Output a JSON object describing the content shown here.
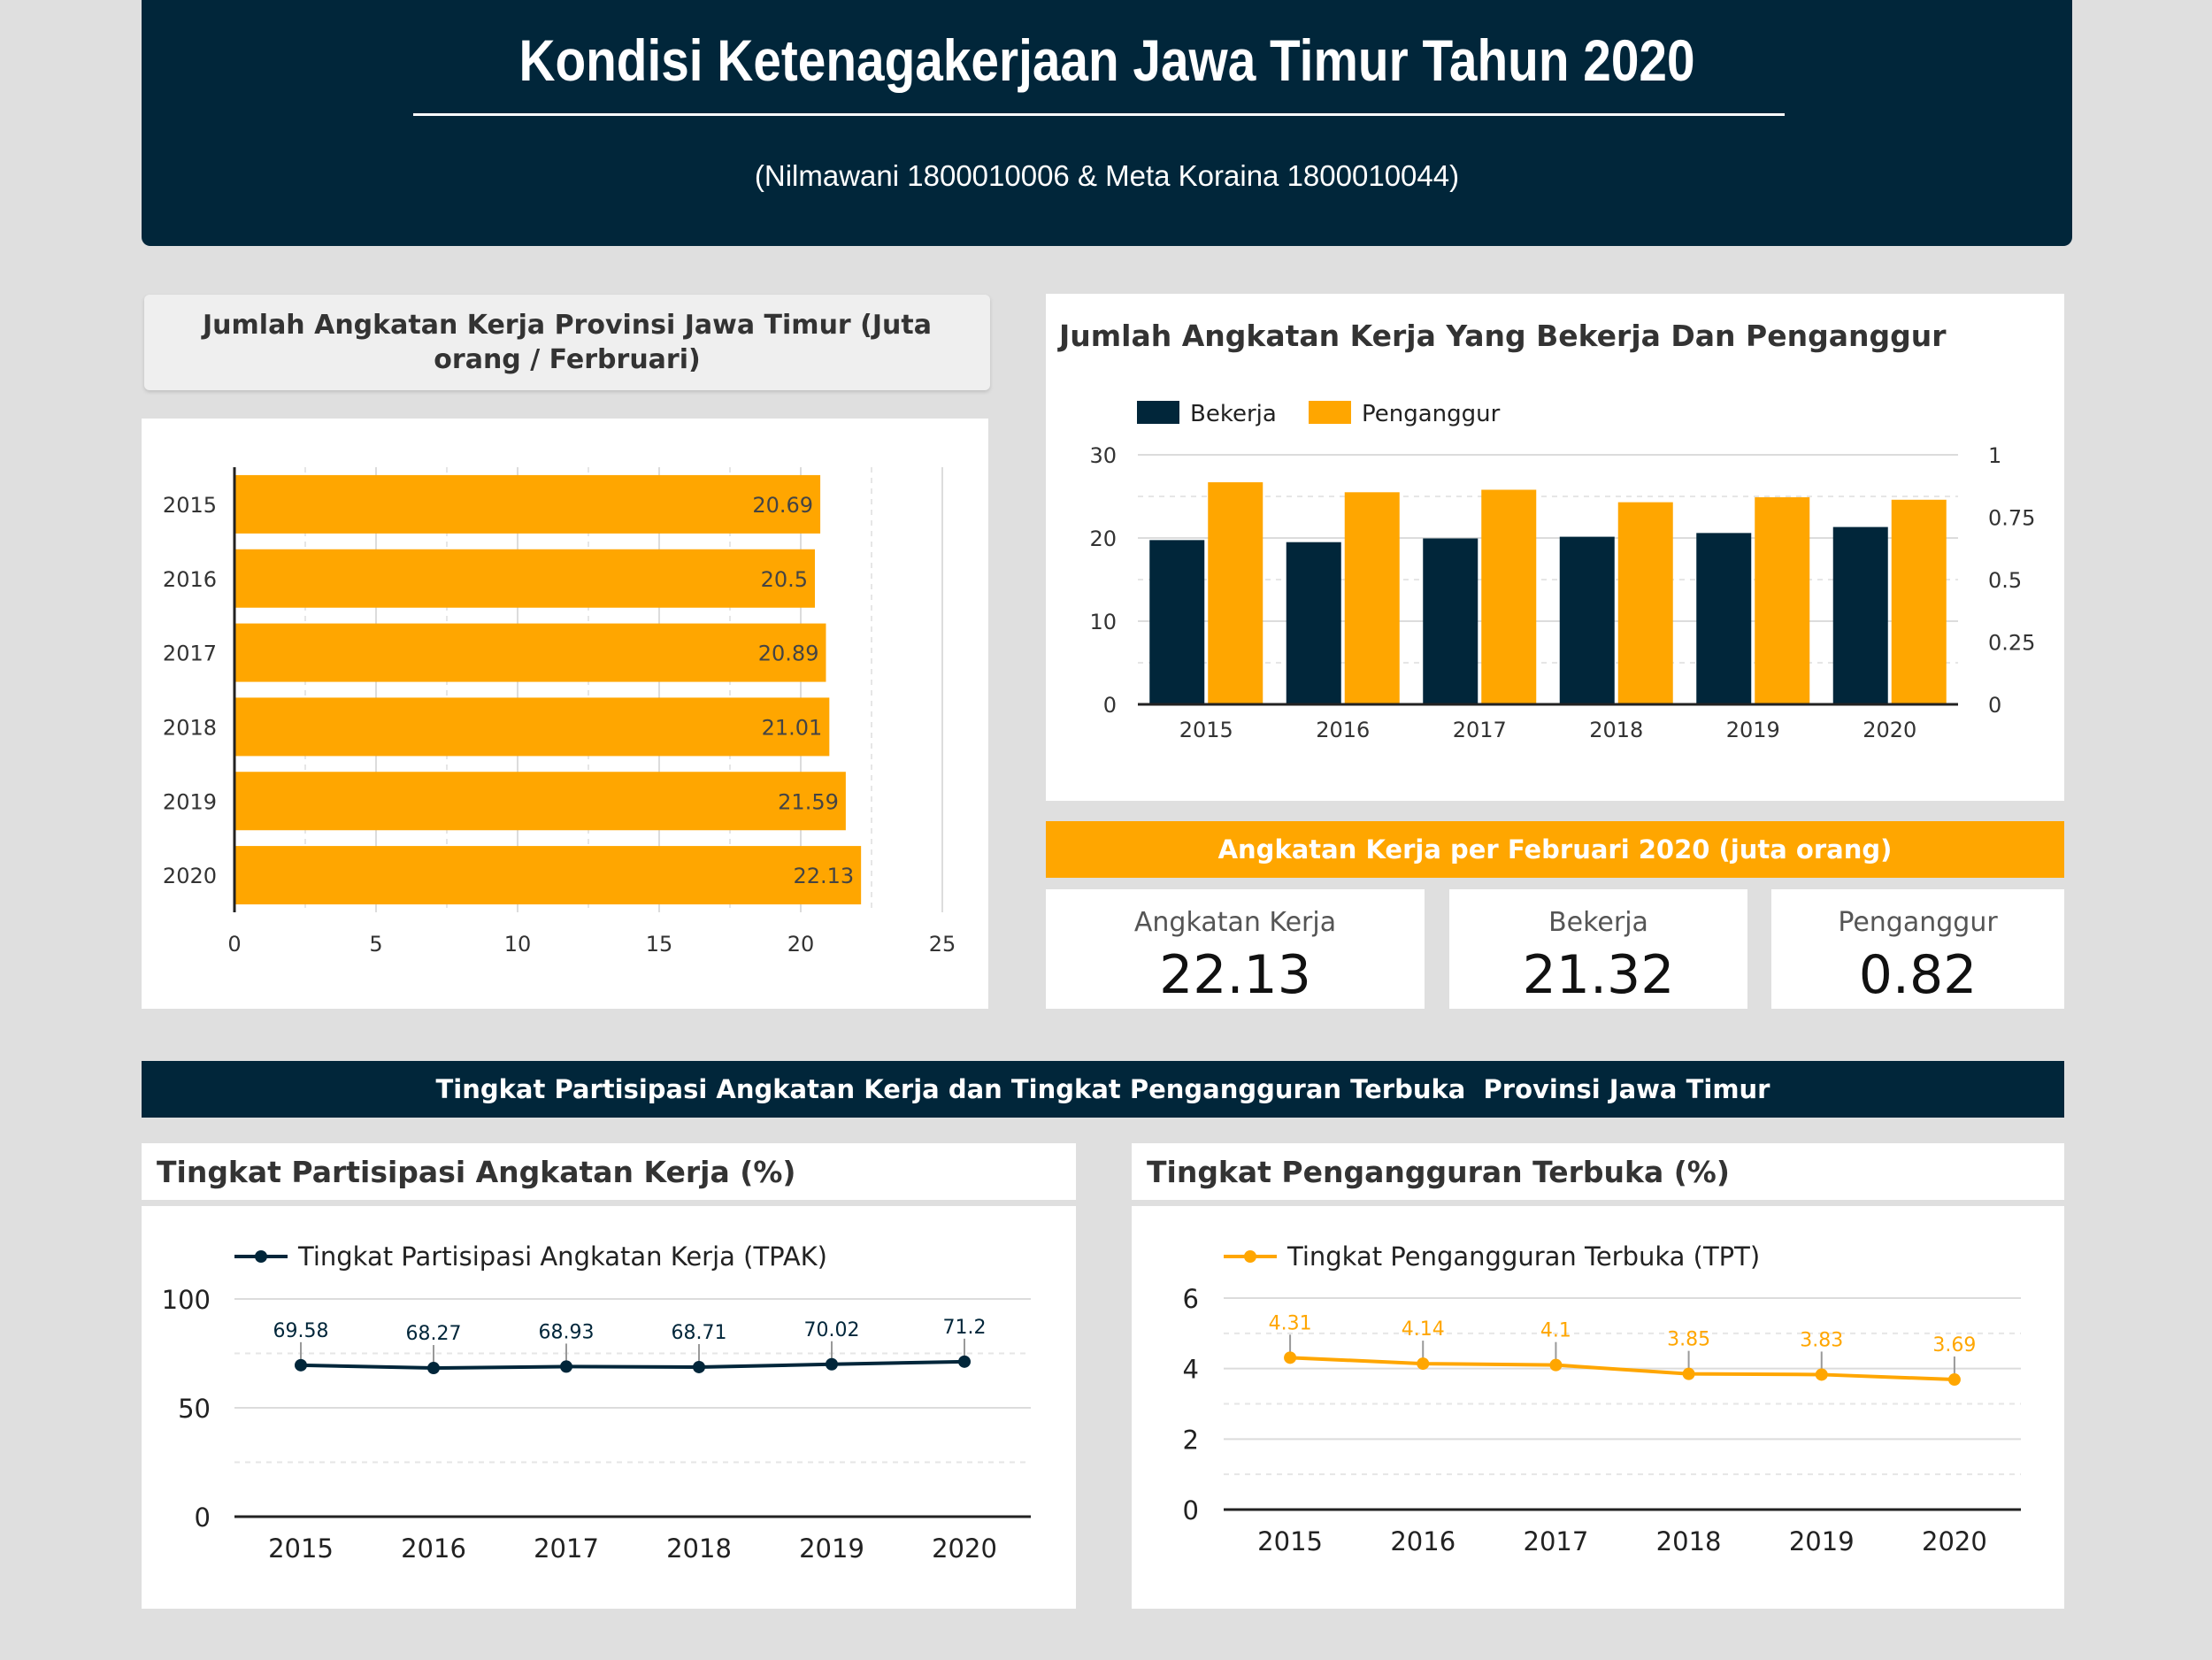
{
  "header": {
    "title": "Kondisi Ketenagakerjaan Jawa Timur Tahun 2020",
    "subtitle": "(Nilmawani 1800010006 & Meta Koraina 1800010044)"
  },
  "colors": {
    "navy": "#01263a",
    "orange": "#ffa600",
    "background": "#dfdfdf"
  },
  "chart_data": [
    {
      "type": "bar",
      "orientation": "horizontal",
      "title": "Jumlah Angkatan Kerja Provinsi Jawa Timur (Juta orang / Ferbruari)",
      "categories": [
        "2015",
        "2016",
        "2017",
        "2018",
        "2019",
        "2020"
      ],
      "values": [
        20.69,
        20.5,
        20.89,
        21.01,
        21.59,
        22.13
      ],
      "data_labels": [
        "20.69",
        "20.5",
        "20.89",
        "21.01",
        "21.59",
        "22.13"
      ],
      "xlim": [
        0,
        25
      ],
      "x_ticks": [
        "0",
        "5",
        "10",
        "15",
        "20",
        "25"
      ],
      "grid": true
    },
    {
      "type": "bar",
      "title": "Jumlah Angkatan Kerja Yang Bekerja Dan Penganggur",
      "categories": [
        "2015",
        "2016",
        "2017",
        "2018",
        "2019",
        "2020"
      ],
      "series": [
        {
          "name": "Bekerja",
          "values": [
            19.75,
            19.5,
            19.95,
            20.15,
            20.6,
            21.32
          ],
          "color": "#01263a",
          "axis": "left"
        },
        {
          "name": "Penganggur",
          "values": [
            0.89,
            0.85,
            0.86,
            0.81,
            0.83,
            0.82
          ],
          "color": "#ffa600",
          "axis": "right"
        }
      ],
      "ylim": [
        0,
        30
      ],
      "y_ticks": [
        "0",
        "10",
        "20",
        "30"
      ],
      "y2lim": [
        0,
        1
      ],
      "y2_ticks": [
        "0",
        "0.25",
        "0.5",
        "0.75",
        "1"
      ],
      "legend": "top-left",
      "grid": true
    },
    {
      "type": "line",
      "title": "Tingkat Partisipasi Angkatan Kerja (%)",
      "categories": [
        "2015",
        "2016",
        "2017",
        "2018",
        "2019",
        "2020"
      ],
      "series": [
        {
          "name": "Tingkat Partisipasi Angkatan Kerja (TPAK)",
          "values": [
            69.58,
            68.27,
            68.93,
            68.71,
            70.02,
            71.2
          ],
          "labels": [
            "69.58",
            "68.27",
            "68.93",
            "68.71",
            "70.02",
            "71.2"
          ],
          "color": "#01263a"
        }
      ],
      "ylim": [
        0,
        100
      ],
      "y_ticks": [
        "0",
        "50",
        "100"
      ],
      "legend": "top-left",
      "grid": true
    },
    {
      "type": "line",
      "title": "Tingkat Pengangguran Terbuka (%)",
      "categories": [
        "2015",
        "2016",
        "2017",
        "2018",
        "2019",
        "2020"
      ],
      "series": [
        {
          "name": "Tingkat Pengangguran Terbuka (TPT)",
          "values": [
            4.31,
            4.14,
            4.1,
            3.85,
            3.83,
            3.69
          ],
          "labels": [
            "4.31",
            "4.14",
            "4.1",
            "3.85",
            "3.83",
            "3.69"
          ],
          "color": "#ffa600"
        }
      ],
      "ylim": [
        0,
        6
      ],
      "y_ticks": [
        "0",
        "2",
        "4",
        "6"
      ],
      "legend": "top-left",
      "grid": true
    }
  ],
  "kpi": {
    "title": "Angkatan Kerja per Februari 2020 (juta orang)",
    "items": [
      {
        "label": "Angkatan Kerja",
        "value": "22.13"
      },
      {
        "label": "Bekerja",
        "value": "21.32"
      },
      {
        "label": "Penganggur",
        "value": "0.82"
      }
    ]
  },
  "section_banner": "Tingkat Partisipasi Angkatan Kerja dan Tingkat Pengangguran Terbuka  Provinsi Jawa Timur"
}
